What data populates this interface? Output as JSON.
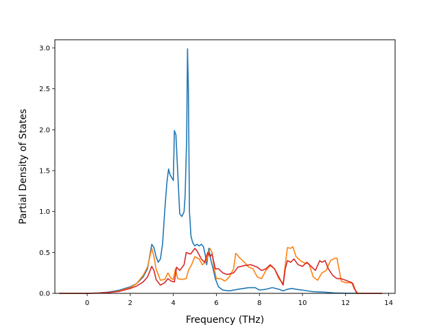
{
  "chart_data": {
    "type": "line",
    "xlabel": "Frequency (THz)",
    "ylabel": "Partial Density of States",
    "xlim": [
      -1.5,
      14.3
    ],
    "ylim": [
      0,
      3.1
    ],
    "xticks": [
      0,
      2,
      4,
      6,
      8,
      10,
      12,
      14
    ],
    "yticks": [
      0.0,
      0.5,
      1.0,
      1.5,
      2.0,
      2.5,
      3.0
    ],
    "xtick_labels": [
      "0",
      "2",
      "4",
      "6",
      "8",
      "10",
      "12",
      "14"
    ],
    "ytick_labels": [
      "0.0",
      "0.5",
      "1.0",
      "1.5",
      "2.0",
      "2.5",
      "3.0"
    ],
    "grid": false,
    "series": [
      {
        "color": "#1f77b4",
        "points": [
          [
            -1.3,
            0
          ],
          [
            0,
            0
          ],
          [
            0.5,
            0.005
          ],
          [
            1,
            0.015
          ],
          [
            1.5,
            0.04
          ],
          [
            2,
            0.08
          ],
          [
            2.3,
            0.12
          ],
          [
            2.6,
            0.2
          ],
          [
            2.8,
            0.3
          ],
          [
            3.0,
            0.6
          ],
          [
            3.1,
            0.56
          ],
          [
            3.2,
            0.45
          ],
          [
            3.3,
            0.38
          ],
          [
            3.4,
            0.42
          ],
          [
            3.5,
            0.6
          ],
          [
            3.6,
            1.0
          ],
          [
            3.7,
            1.35
          ],
          [
            3.78,
            1.52
          ],
          [
            3.85,
            1.45
          ],
          [
            4.0,
            1.38
          ],
          [
            4.05,
            1.99
          ],
          [
            4.12,
            1.94
          ],
          [
            4.2,
            1.5
          ],
          [
            4.3,
            0.97
          ],
          [
            4.4,
            0.94
          ],
          [
            4.5,
            1.0
          ],
          [
            4.55,
            1.2
          ],
          [
            4.62,
            1.9
          ],
          [
            4.66,
            2.99
          ],
          [
            4.7,
            2.5
          ],
          [
            4.75,
            1.0
          ],
          [
            4.82,
            0.7
          ],
          [
            4.9,
            0.62
          ],
          [
            5.0,
            0.58
          ],
          [
            5.1,
            0.6
          ],
          [
            5.2,
            0.58
          ],
          [
            5.3,
            0.6
          ],
          [
            5.4,
            0.57
          ],
          [
            5.5,
            0.45
          ],
          [
            5.55,
            0.35
          ],
          [
            5.65,
            0.55
          ],
          [
            5.75,
            0.4
          ],
          [
            5.85,
            0.3
          ],
          [
            5.95,
            0.18
          ],
          [
            6.1,
            0.08
          ],
          [
            6.3,
            0.04
          ],
          [
            6.6,
            0.03
          ],
          [
            7,
            0.05
          ],
          [
            7.5,
            0.07
          ],
          [
            7.8,
            0.07
          ],
          [
            8.0,
            0.04
          ],
          [
            8.3,
            0.05
          ],
          [
            8.6,
            0.07
          ],
          [
            8.9,
            0.05
          ],
          [
            9.1,
            0.03
          ],
          [
            9.3,
            0.05
          ],
          [
            9.5,
            0.06
          ],
          [
            9.7,
            0.05
          ],
          [
            10,
            0.04
          ],
          [
            10.5,
            0.02
          ],
          [
            11,
            0.015
          ],
          [
            11.5,
            0.005
          ],
          [
            12,
            0.002
          ],
          [
            12.5,
            0
          ],
          [
            13.7,
            0
          ]
        ]
      },
      {
        "color": "#ff7f0e",
        "points": [
          [
            -1.3,
            0
          ],
          [
            0,
            0
          ],
          [
            0.5,
            0.004
          ],
          [
            1,
            0.01
          ],
          [
            1.5,
            0.03
          ],
          [
            2,
            0.07
          ],
          [
            2.3,
            0.12
          ],
          [
            2.6,
            0.22
          ],
          [
            2.8,
            0.32
          ],
          [
            3.0,
            0.55
          ],
          [
            3.1,
            0.45
          ],
          [
            3.2,
            0.3
          ],
          [
            3.4,
            0.16
          ],
          [
            3.6,
            0.17
          ],
          [
            3.75,
            0.25
          ],
          [
            3.9,
            0.18
          ],
          [
            4.0,
            0.17
          ],
          [
            4.1,
            0.3
          ],
          [
            4.2,
            0.18
          ],
          [
            4.4,
            0.17
          ],
          [
            4.6,
            0.18
          ],
          [
            4.7,
            0.28
          ],
          [
            4.85,
            0.35
          ],
          [
            5.0,
            0.45
          ],
          [
            5.2,
            0.42
          ],
          [
            5.35,
            0.35
          ],
          [
            5.5,
            0.38
          ],
          [
            5.6,
            0.45
          ],
          [
            5.7,
            0.55
          ],
          [
            5.8,
            0.5
          ],
          [
            5.9,
            0.3
          ],
          [
            6.0,
            0.18
          ],
          [
            6.2,
            0.18
          ],
          [
            6.4,
            0.15
          ],
          [
            6.6,
            0.2
          ],
          [
            6.8,
            0.3
          ],
          [
            6.9,
            0.49
          ],
          [
            7.1,
            0.43
          ],
          [
            7.3,
            0.38
          ],
          [
            7.5,
            0.32
          ],
          [
            7.7,
            0.3
          ],
          [
            7.9,
            0.2
          ],
          [
            8.1,
            0.18
          ],
          [
            8.3,
            0.28
          ],
          [
            8.5,
            0.34
          ],
          [
            8.7,
            0.3
          ],
          [
            8.9,
            0.18
          ],
          [
            9.1,
            0.12
          ],
          [
            9.2,
            0.35
          ],
          [
            9.3,
            0.56
          ],
          [
            9.45,
            0.55
          ],
          [
            9.55,
            0.57
          ],
          [
            9.7,
            0.45
          ],
          [
            9.9,
            0.4
          ],
          [
            10.1,
            0.37
          ],
          [
            10.3,
            0.36
          ],
          [
            10.5,
            0.2
          ],
          [
            10.7,
            0.16
          ],
          [
            10.9,
            0.25
          ],
          [
            11.1,
            0.28
          ],
          [
            11.3,
            0.4
          ],
          [
            11.5,
            0.43
          ],
          [
            11.6,
            0.43
          ],
          [
            11.8,
            0.15
          ],
          [
            12.0,
            0.13
          ],
          [
            12.2,
            0.13
          ],
          [
            12.35,
            0.12
          ],
          [
            12.5,
            0
          ],
          [
            13.7,
            0
          ]
        ]
      },
      {
        "color": "#d62728",
        "points": [
          [
            -1.3,
            0
          ],
          [
            0,
            0
          ],
          [
            0.5,
            0.003
          ],
          [
            1,
            0.01
          ],
          [
            1.5,
            0.025
          ],
          [
            2,
            0.06
          ],
          [
            2.3,
            0.09
          ],
          [
            2.6,
            0.14
          ],
          [
            2.8,
            0.2
          ],
          [
            3.0,
            0.33
          ],
          [
            3.1,
            0.28
          ],
          [
            3.2,
            0.17
          ],
          [
            3.4,
            0.1
          ],
          [
            3.6,
            0.13
          ],
          [
            3.75,
            0.18
          ],
          [
            3.9,
            0.15
          ],
          [
            4.05,
            0.14
          ],
          [
            4.15,
            0.32
          ],
          [
            4.3,
            0.28
          ],
          [
            4.5,
            0.35
          ],
          [
            4.6,
            0.5
          ],
          [
            4.8,
            0.48
          ],
          [
            5.0,
            0.55
          ],
          [
            5.1,
            0.52
          ],
          [
            5.3,
            0.42
          ],
          [
            5.45,
            0.38
          ],
          [
            5.6,
            0.5
          ],
          [
            5.7,
            0.45
          ],
          [
            5.8,
            0.48
          ],
          [
            5.95,
            0.3
          ],
          [
            6.1,
            0.3
          ],
          [
            6.3,
            0.25
          ],
          [
            6.5,
            0.23
          ],
          [
            6.8,
            0.25
          ],
          [
            7.0,
            0.32
          ],
          [
            7.3,
            0.34
          ],
          [
            7.6,
            0.35
          ],
          [
            7.9,
            0.32
          ],
          [
            8.1,
            0.28
          ],
          [
            8.3,
            0.3
          ],
          [
            8.5,
            0.35
          ],
          [
            8.7,
            0.3
          ],
          [
            8.9,
            0.2
          ],
          [
            9.1,
            0.1
          ],
          [
            9.2,
            0.3
          ],
          [
            9.3,
            0.4
          ],
          [
            9.45,
            0.38
          ],
          [
            9.6,
            0.42
          ],
          [
            9.8,
            0.35
          ],
          [
            10.0,
            0.33
          ],
          [
            10.2,
            0.38
          ],
          [
            10.4,
            0.33
          ],
          [
            10.6,
            0.28
          ],
          [
            10.8,
            0.4
          ],
          [
            10.9,
            0.38
          ],
          [
            11.05,
            0.4
          ],
          [
            11.2,
            0.3
          ],
          [
            11.4,
            0.22
          ],
          [
            11.6,
            0.18
          ],
          [
            11.8,
            0.18
          ],
          [
            12.0,
            0.16
          ],
          [
            12.3,
            0.13
          ],
          [
            12.4,
            0.06
          ],
          [
            12.55,
            0
          ],
          [
            13.7,
            0
          ]
        ]
      }
    ]
  }
}
